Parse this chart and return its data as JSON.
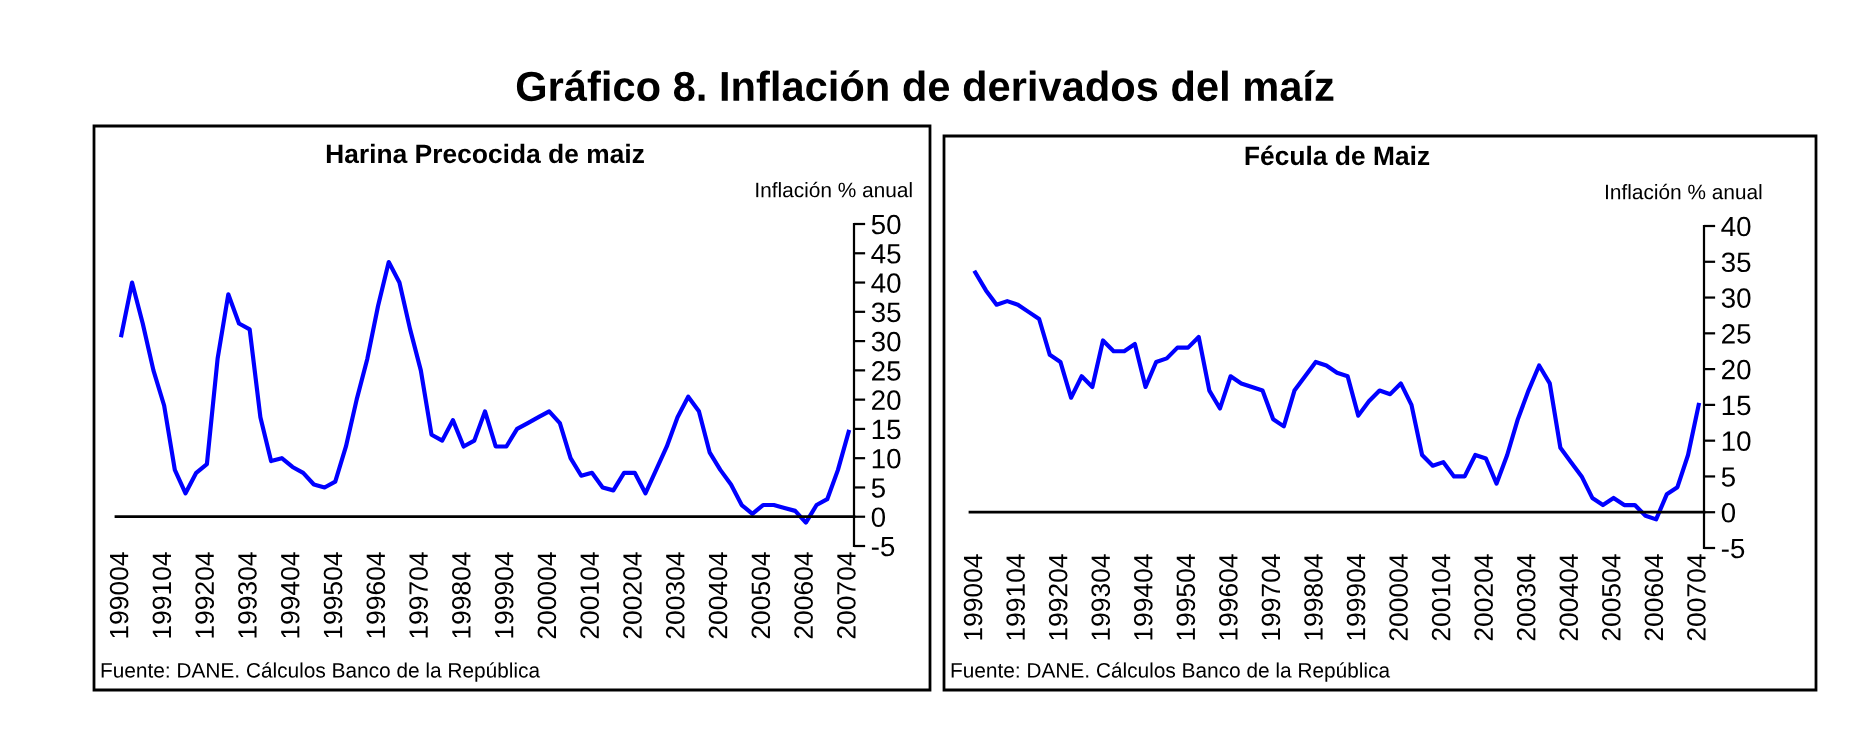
{
  "chart_data": [
    {
      "type": "other",
      "title": "Gráfico 8. Inflación de derivados del maíz"
    },
    {
      "type": "line",
      "title": "Harina Precocida de maiz",
      "ylabel": "Inflación % anual",
      "annotations": [
        "Fuente: DANE. Cálculos Banco de la República"
      ],
      "categories": [
        "199004",
        null,
        null,
        null,
        "199104",
        null,
        null,
        null,
        "199204",
        null,
        null,
        null,
        "199304",
        null,
        null,
        null,
        "199404",
        null,
        null,
        null,
        "199504",
        null,
        null,
        null,
        "199604",
        null,
        null,
        null,
        "199704",
        null,
        null,
        null,
        "199804",
        null,
        null,
        null,
        "199904",
        null,
        null,
        null,
        "200004",
        null,
        null,
        null,
        "200104",
        null,
        null,
        null,
        "200204",
        null,
        null,
        null,
        "200304",
        null,
        null,
        null,
        "200404",
        null,
        null,
        null,
        "200504",
        null,
        null,
        null,
        "200604",
        null,
        null,
        null,
        "200704"
      ],
      "series": [
        {
          "color": "#0000ff",
          "values": [
            31,
            40,
            33,
            25,
            19,
            8,
            4,
            7.5,
            9,
            27,
            38,
            33,
            32,
            17,
            9.5,
            10,
            8.5,
            7.5,
            5.5,
            5,
            6,
            12,
            20,
            27,
            36,
            43.5,
            40,
            32,
            25,
            14,
            13,
            16.5,
            12,
            13,
            18,
            12,
            12,
            15,
            16,
            17,
            18,
            16,
            10,
            7,
            7.5,
            5,
            4.5,
            7.5,
            7.5,
            4,
            8,
            12,
            17,
            20.5,
            18,
            11,
            8,
            5.5,
            2,
            0.5,
            2,
            2,
            1.5,
            1,
            -1,
            2,
            3,
            8,
            14.5
          ]
        }
      ],
      "ylim": [
        -5,
        50
      ],
      "yticks": [
        -5,
        0,
        5,
        10,
        15,
        20,
        25,
        30,
        35,
        40,
        45,
        50
      ],
      "grid": false,
      "legend": false,
      "marker": "none",
      "line_style": "solid"
    },
    {
      "type": "line",
      "title": "Fécula de Maiz",
      "ylabel": "Inflación % anual",
      "annotations": [
        "Fuente: DANE. Cálculos Banco de la República"
      ],
      "categories": [
        "199004",
        null,
        null,
        null,
        "199104",
        null,
        null,
        null,
        "199204",
        null,
        null,
        null,
        "199304",
        null,
        null,
        null,
        "199404",
        null,
        null,
        null,
        "199504",
        null,
        null,
        null,
        "199604",
        null,
        null,
        null,
        "199704",
        null,
        null,
        null,
        "199804",
        null,
        null,
        null,
        "199904",
        null,
        null,
        null,
        "200004",
        null,
        null,
        null,
        "200104",
        null,
        null,
        null,
        "200204",
        null,
        null,
        null,
        "200304",
        null,
        null,
        null,
        "200404",
        null,
        null,
        null,
        "200504",
        null,
        null,
        null,
        "200604",
        null,
        null,
        null,
        "200704"
      ],
      "series": [
        {
          "color": "#0000ff",
          "values": [
            33.5,
            31,
            29,
            29.5,
            29,
            28,
            27,
            22,
            21,
            16,
            19,
            17.5,
            24,
            22.5,
            22.5,
            23.5,
            17.5,
            21,
            21.5,
            23,
            23,
            24.5,
            17,
            14.5,
            19,
            18,
            17.5,
            17,
            13,
            12,
            17,
            19,
            21,
            20.5,
            19.5,
            19,
            13.5,
            15.5,
            17,
            16.5,
            18,
            15,
            8,
            6.5,
            7,
            5,
            5,
            8,
            7.5,
            4,
            8,
            13,
            17,
            20.5,
            18,
            9,
            7,
            5,
            2,
            1,
            2,
            1,
            1,
            -0.5,
            -1,
            2.5,
            3.5,
            8,
            15
          ]
        }
      ],
      "ylim": [
        -5,
        40
      ],
      "yticks": [
        -5,
        0,
        5,
        10,
        15,
        20,
        25,
        30,
        35,
        40
      ],
      "grid": false,
      "legend": false,
      "marker": "none",
      "line_style": "solid"
    }
  ]
}
